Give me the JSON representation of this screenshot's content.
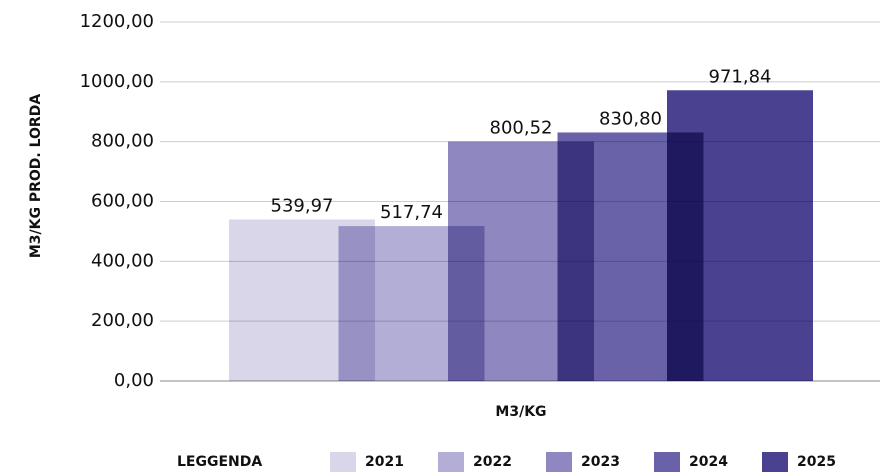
{
  "chart_data": {
    "type": "bar",
    "ylabel": "M3/KG PROD. LORDA",
    "categories": [
      "M3/KG"
    ],
    "legend_title": "LEGGENDA",
    "series": [
      {
        "name": "2021",
        "color": "#d9d6ea",
        "values": [
          539.97
        ],
        "value_labels": [
          "539,97"
        ]
      },
      {
        "name": "2022",
        "color": "#b3aed6",
        "values": [
          517.74
        ],
        "value_labels": [
          "517,74"
        ]
      },
      {
        "name": "2023",
        "color": "#8f87c0",
        "values": [
          800.52
        ],
        "value_labels": [
          "800,52"
        ]
      },
      {
        "name": "2024",
        "color": "#6a62a8",
        "values": [
          830.8
        ],
        "value_labels": [
          "830,80"
        ]
      },
      {
        "name": "2025",
        "color": "#4a4191",
        "values": [
          971.84
        ],
        "value_labels": [
          "971,84"
        ]
      }
    ],
    "ylim": [
      0,
      1200
    ],
    "yticks": [
      {
        "value": 0,
        "label": "0,00"
      },
      {
        "value": 200,
        "label": "200,00"
      },
      {
        "value": 400,
        "label": "400,00"
      },
      {
        "value": 600,
        "label": "600,00"
      },
      {
        "value": 800,
        "label": "800,00"
      },
      {
        "value": 1000,
        "label": "1000,00"
      },
      {
        "value": 1200,
        "label": "1200,00"
      }
    ],
    "grid": true
  }
}
